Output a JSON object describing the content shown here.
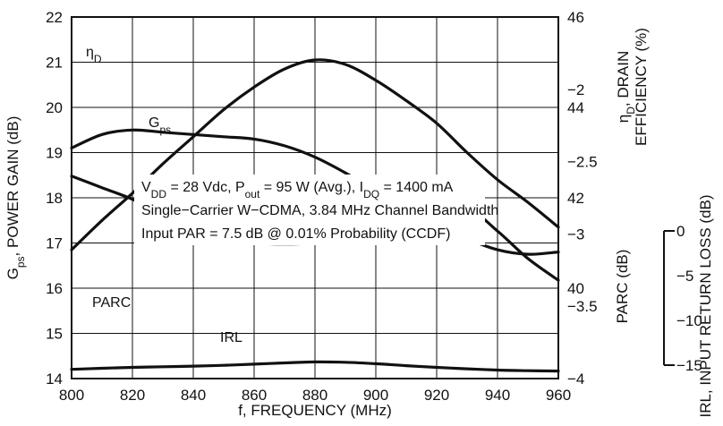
{
  "chart_data": {
    "type": "line",
    "xlabel": "f, FREQUENCY (MHz)",
    "x_ticks": [
      "800",
      "820",
      "840",
      "860",
      "880",
      "900",
      "920",
      "940",
      "960"
    ],
    "xlim": [
      800,
      960
    ],
    "left_axis": {
      "label_main": "G",
      "label_sub": "ps",
      "label_rest": ", POWER GAIN (dB)",
      "ticks": [
        "14",
        "15",
        "16",
        "17",
        "18",
        "19",
        "20",
        "21",
        "22"
      ],
      "ylim": [
        14,
        22
      ]
    },
    "right_axis_top": {
      "label_eta": "η",
      "label_sub": "D",
      "label_line1_rest": ", DRAIN",
      "label_line2": "EFFICIENCY (%)",
      "ticks": [
        "40",
        "42",
        "44",
        "46"
      ],
      "ylim": [
        38,
        46
      ]
    },
    "right_axis_bottom": {
      "label": "PARC (dB)",
      "ticks": [
        "−2",
        "−2.5",
        "−3",
        "−3.5",
        "−4"
      ],
      "ylim": [
        -4,
        -1.5
      ]
    },
    "irl_axis": {
      "label": "IRL, INPUT RETURN LOSS (dB)",
      "ticks": [
        "0",
        "−5",
        "−10",
        "−15"
      ],
      "ylim": [
        -15,
        0
      ]
    },
    "series": [
      {
        "name": "G",
        "name_sub": "ps",
        "axis": "left",
        "x": [
          800,
          810,
          820,
          830,
          840,
          850,
          860,
          870,
          880,
          890,
          900,
          910,
          920,
          930,
          940,
          950,
          960
        ],
        "y": [
          16.85,
          17.5,
          18.1,
          18.75,
          19.35,
          19.95,
          20.45,
          20.85,
          21.05,
          20.95,
          20.6,
          20.15,
          19.65,
          19.0,
          18.4,
          17.9,
          17.35
        ]
      },
      {
        "name": "η",
        "name_sub": "D",
        "axis": "right_top",
        "x": [
          800,
          810,
          820,
          830,
          840,
          850,
          860,
          870,
          880,
          890,
          900,
          910,
          920,
          930,
          940,
          950,
          960
        ],
        "y": [
          43.1,
          43.4,
          43.5,
          43.45,
          43.4,
          43.35,
          43.3,
          43.15,
          42.9,
          42.55,
          42.15,
          41.8,
          41.45,
          41.1,
          40.85,
          40.75,
          40.8
        ]
      },
      {
        "name": "PARC",
        "axis": "right_bottom",
        "x": [
          800,
          810,
          820,
          830,
          840,
          850,
          860,
          870,
          880,
          890,
          900,
          910,
          920,
          930,
          940,
          950,
          960
        ],
        "y": [
          -2.6,
          -2.68,
          -2.76,
          -2.86,
          -2.95,
          -3.02,
          -3.06,
          -3.07,
          -3.06,
          -3.02,
          -2.96,
          -2.89,
          -2.85,
          -2.82,
          -2.98,
          -3.17,
          -3.32
        ]
      },
      {
        "name": "IRL",
        "axis": "irl",
        "x": [
          800,
          810,
          820,
          830,
          840,
          850,
          860,
          870,
          880,
          890,
          900,
          910,
          920,
          930,
          940,
          950,
          960
        ],
        "y": [
          -15.47,
          -15.35,
          -15.25,
          -15.18,
          -15.11,
          -15.02,
          -14.89,
          -14.75,
          -14.64,
          -14.68,
          -14.84,
          -15.06,
          -15.25,
          -15.41,
          -15.55,
          -15.62,
          -15.66
        ]
      }
    ],
    "annotation": {
      "line1": {
        "vdd": "V",
        "vdd_sub": "DD",
        "vdd_rest": " = 28 Vdc, P",
        "pout_sub": "out",
        "pout_rest": " = 95 W (Avg.), I",
        "idq_sub": "DQ",
        "idq_rest": " = 1400 mA"
      },
      "line2": "Single−Carrier W−CDMA, 3.84 MHz Channel Bandwidth",
      "line3": "Input PAR = 7.5 dB @ 0.01% Probability (CCDF)"
    },
    "grid": true,
    "legend": "none"
  }
}
